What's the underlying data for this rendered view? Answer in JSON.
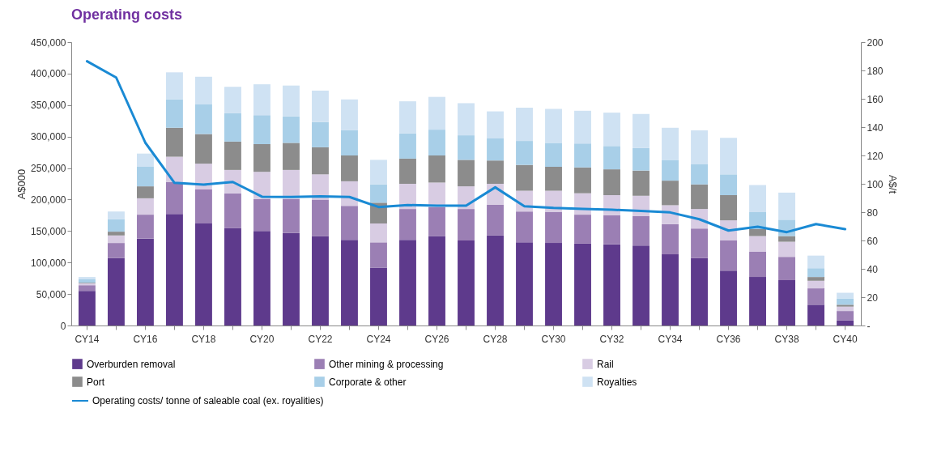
{
  "chart_data": {
    "type": "bar",
    "title": "Operating costs",
    "ylabel": "A$000",
    "y2label": "A$/t",
    "stacked": true,
    "legend": "bottom",
    "grid": false,
    "categories": [
      "CY14",
      null,
      "CY16",
      null,
      "CY18",
      null,
      "CY20",
      null,
      "CY22",
      null,
      "CY24",
      null,
      "CY26",
      null,
      "CY28",
      null,
      "CY30",
      null,
      "CY32",
      null,
      "CY34",
      null,
      "CY36",
      null,
      "CY38",
      null,
      "CY40"
    ],
    "ylim": [
      0,
      450000
    ],
    "yticks": [
      {
        "value": 0,
        "label": "0"
      },
      {
        "value": 50000,
        "label": "50,000"
      },
      {
        "value": 100000,
        "label": "100,000"
      },
      {
        "value": 150000,
        "label": "150,000"
      },
      {
        "value": 200000,
        "label": "200,000"
      },
      {
        "value": 250000,
        "label": "250,000"
      },
      {
        "value": 300000,
        "label": "300,000"
      },
      {
        "value": 350000,
        "label": "350,000"
      },
      {
        "value": 400000,
        "label": "400,000"
      },
      {
        "value": 450000,
        "label": "450,000"
      }
    ],
    "y2lim": [
      0,
      200
    ],
    "y2ticks": [
      {
        "value": 0,
        "label": "-"
      },
      20,
      40,
      60,
      80,
      100,
      120,
      140,
      160,
      180,
      200
    ],
    "series": [
      {
        "name": "Overburden removal",
        "color": "#5e3a8c",
        "values": [
          55000,
          107000,
          138000,
          177000,
          162000,
          155000,
          150000,
          147000,
          142000,
          136000,
          92000,
          136000,
          142000,
          135000,
          143000,
          132000,
          131000,
          130000,
          129000,
          127000,
          113000,
          107000,
          87000,
          77000,
          72000,
          33000,
          8000
        ]
      },
      {
        "name": "Other mining & processing",
        "color": "#9b7fb4",
        "values": [
          9000,
          24000,
          38000,
          51000,
          54000,
          55000,
          51000,
          54000,
          58000,
          54000,
          40000,
          49000,
          46000,
          50000,
          49000,
          49000,
          49000,
          46000,
          46000,
          47000,
          48000,
          47000,
          48000,
          40000,
          37000,
          26000,
          15000
        ]
      },
      {
        "name": "Rail",
        "color": "#d8cce3",
        "values": [
          3000,
          12000,
          26000,
          40000,
          41000,
          37000,
          43000,
          46000,
          40000,
          39000,
          30000,
          40000,
          39000,
          36000,
          33000,
          33000,
          34000,
          34000,
          32000,
          32000,
          30000,
          31000,
          32000,
          25000,
          24000,
          12000,
          7000
        ]
      },
      {
        "name": "Port",
        "color": "#8c8c8c",
        "values": [
          1000,
          6000,
          19000,
          46000,
          47000,
          45000,
          44000,
          43000,
          43000,
          41000,
          33000,
          40000,
          43000,
          42000,
          37000,
          41000,
          38000,
          41000,
          41000,
          40000,
          39000,
          39000,
          40000,
          11000,
          9000,
          6000,
          3000
        ]
      },
      {
        "name": "Corporate & other",
        "color": "#a8cfe8",
        "values": [
          6000,
          20000,
          31000,
          45000,
          47000,
          45000,
          46000,
          42000,
          40000,
          40000,
          29000,
          40000,
          41000,
          39000,
          35000,
          38000,
          38000,
          38000,
          37000,
          36000,
          33000,
          32000,
          33000,
          27000,
          26000,
          14000,
          10000
        ]
      },
      {
        "name": "Royalties",
        "color": "#cfe2f3",
        "values": [
          3000,
          12000,
          21000,
          43000,
          44000,
          42000,
          49000,
          49000,
          50000,
          49000,
          39000,
          51000,
          52000,
          51000,
          43000,
          53000,
          54000,
          52000,
          53000,
          54000,
          51000,
          54000,
          58000,
          43000,
          43000,
          20000,
          9000
        ]
      },
      {
        "name": "Operating costs/ tonne of saleable coal (ex. royalities)",
        "type": "line",
        "axis": "y2",
        "color": "#1a8ad4",
        "values": [
          186.5,
          175,
          129,
          100.7,
          99.4,
          101.3,
          90.9,
          90.7,
          91.2,
          90.7,
          83.6,
          85,
          84.6,
          84.6,
          97.5,
          84.2,
          83,
          82.3,
          81.7,
          80.8,
          79.8,
          75,
          67,
          69.7,
          65.9,
          71.6,
          68
        ]
      }
    ]
  }
}
